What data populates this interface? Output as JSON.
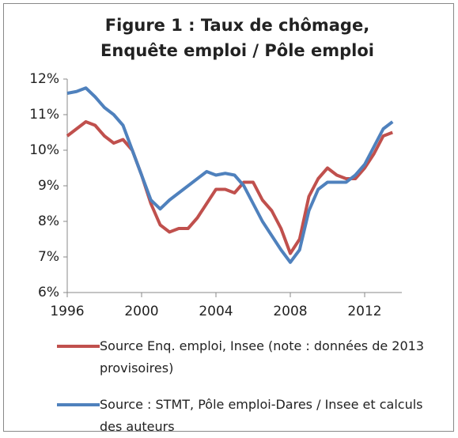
{
  "chart_data": {
    "type": "line",
    "title": [
      "Figure 1 : Taux de chômage,",
      "Enquête emploi / Pôle emploi"
    ],
    "x": [
      1996,
      1996.5,
      1997,
      1997.5,
      1998,
      1998.5,
      1999,
      1999.5,
      2000,
      2000.5,
      2001,
      2001.5,
      2002,
      2002.5,
      2003,
      2003.5,
      2004,
      2004.5,
      2005,
      2005.5,
      2006,
      2006.5,
      2007,
      2007.5,
      2008,
      2008.5,
      2009,
      2009.5,
      2010,
      2010.5,
      2011,
      2011.5,
      2012,
      2012.5,
      2013,
      2013.5
    ],
    "series": [
      {
        "name": "Source Enq. emploi, Insee (note : données de 2013 provisoires)",
        "color": "#c0504d",
        "values": [
          10.4,
          10.6,
          10.8,
          10.7,
          10.4,
          10.2,
          10.3,
          10.0,
          9.3,
          8.5,
          7.9,
          7.7,
          7.8,
          7.8,
          8.1,
          8.5,
          8.9,
          8.9,
          8.8,
          9.1,
          9.1,
          8.6,
          8.3,
          7.8,
          7.1,
          7.5,
          8.7,
          9.2,
          9.5,
          9.3,
          9.2,
          9.2,
          9.5,
          9.9,
          10.4,
          10.5
        ]
      },
      {
        "name": "Source : STMT, Pôle emploi-Dares / Insee et calculs des auteurs",
        "color": "#4f81bd",
        "values": [
          11.6,
          11.65,
          11.75,
          11.5,
          11.2,
          11.0,
          10.7,
          10.0,
          9.3,
          8.6,
          8.35,
          8.6,
          8.8,
          9.0,
          9.2,
          9.4,
          9.3,
          9.35,
          9.3,
          9.0,
          8.5,
          8.0,
          7.6,
          7.2,
          6.85,
          7.2,
          8.3,
          8.9,
          9.1,
          9.1,
          9.1,
          9.3,
          9.6,
          10.1,
          10.6,
          10.8
        ]
      }
    ],
    "xlim": [
      1996,
      2014
    ],
    "xticks": [
      1996,
      2000,
      2004,
      2008,
      2012
    ],
    "ylim": [
      6,
      12
    ],
    "yticks": [
      {
        "value": 6,
        "label": "6%"
      },
      {
        "value": 7,
        "label": "7%"
      },
      {
        "value": 8,
        "label": "8%"
      },
      {
        "value": 9,
        "label": "9%"
      },
      {
        "value": 10,
        "label": "10%"
      },
      {
        "value": 11,
        "label": "11%"
      },
      {
        "value": 12,
        "label": "12%"
      }
    ],
    "grid": false
  }
}
